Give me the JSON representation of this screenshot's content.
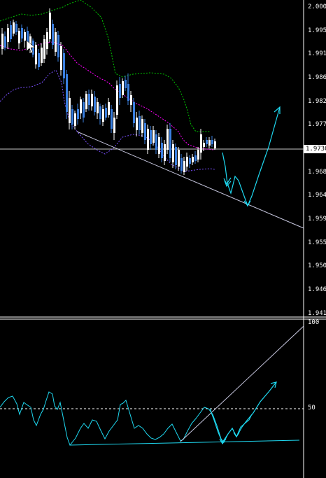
{
  "price_axis": {
    "labels": [
      "2.0000",
      "1.9955",
      "1.9910",
      "1.9865",
      "1.9820",
      "1.9775",
      "1.9685",
      "1.9640",
      "1.9595",
      "1.9550",
      "1.9505",
      "1.9460",
      "1.9415"
    ],
    "current_price": "1.9730"
  },
  "oscillator": {
    "labels": [
      "100",
      "50"
    ]
  },
  "colors": {
    "background": "#000000",
    "bull_candle": "#ffffff",
    "bear_candle": "#3a7fe0",
    "upper_band": "#00c800",
    "middle_band": "#ff00ff",
    "lower_band": "#7a4fff",
    "trendline": "#c8c8e0",
    "projection": "#1ed8f0",
    "oscillator_line": "#1ed8f0"
  }
}
